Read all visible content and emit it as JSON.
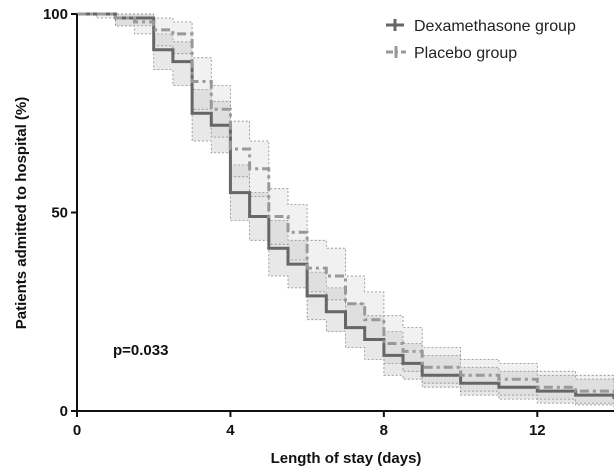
{
  "chart_data": {
    "type": "line",
    "subtype": "kaplan-meier step",
    "title": "",
    "xlabel": "Length of stay (days)",
    "ylabel": "Patients admitted to hospital (%)",
    "xlim": [
      0,
      14
    ],
    "ylim": [
      0,
      100
    ],
    "xticks": [
      0,
      4,
      8,
      12
    ],
    "yticks": [
      0,
      50,
      100
    ],
    "grid": false,
    "legend_position": "top-right",
    "annotation": "p=0.033",
    "series": [
      {
        "name": "Dexamethasone group",
        "color": "#666666",
        "style": "solid",
        "x": [
          0,
          1,
          2,
          2.5,
          3,
          3.5,
          4,
          4.5,
          5,
          5.5,
          6,
          6.5,
          7,
          7.5,
          8,
          8.5,
          9,
          10,
          11,
          12,
          13,
          14
        ],
        "y": [
          100,
          99,
          91,
          88,
          75,
          72,
          55,
          49,
          41,
          37,
          29,
          25,
          21,
          18,
          14,
          12,
          9,
          7,
          6,
          5,
          4,
          3
        ],
        "ci_upper": [
          100,
          100,
          95,
          93,
          81,
          78,
          62,
          55,
          48,
          43,
          35,
          31,
          27,
          24,
          20,
          17,
          14,
          11,
          10,
          9,
          8,
          6
        ],
        "ci_lower": [
          100,
          97,
          86,
          82,
          68,
          65,
          48,
          43,
          34,
          31,
          23,
          20,
          16,
          13,
          9,
          8,
          6,
          4,
          3,
          2,
          1.5,
          1
        ]
      },
      {
        "name": "Placebo group",
        "color": "#999999",
        "style": "dash-dot",
        "x": [
          0,
          0.5,
          1,
          1.5,
          2,
          2.5,
          3,
          3.5,
          4,
          4.5,
          5,
          5.5,
          6,
          6.5,
          7,
          7.5,
          8,
          8.5,
          9,
          10,
          11,
          12,
          13,
          14
        ],
        "y": [
          100,
          100,
          99,
          98,
          96,
          95,
          83,
          76,
          66,
          61,
          49,
          45,
          36,
          34,
          27,
          23,
          17,
          15,
          11,
          9,
          8,
          6,
          5,
          4
        ],
        "ci_upper": [
          100,
          100,
          100,
          100,
          99,
          98,
          89,
          82,
          73,
          68,
          56,
          52,
          43,
          41,
          34,
          30,
          24,
          21,
          16,
          13,
          12,
          10,
          9,
          7
        ],
        "ci_lower": [
          100,
          99,
          97,
          95,
          92,
          90,
          76,
          69,
          59,
          54,
          42,
          38,
          30,
          28,
          21,
          18,
          12,
          10,
          7,
          5,
          4,
          3,
          2,
          1
        ]
      }
    ]
  }
}
